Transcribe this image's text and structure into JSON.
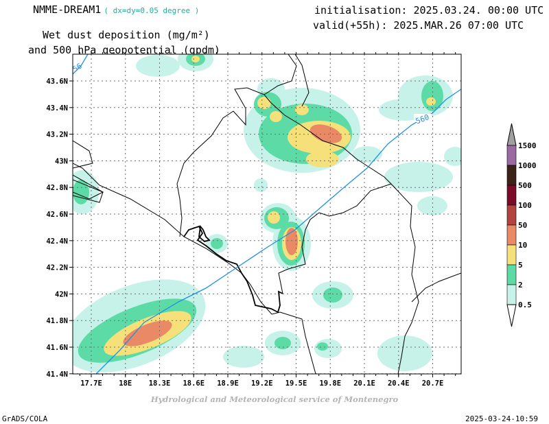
{
  "header": {
    "model": "NMME-DREAM1",
    "resolution": "( dx=dy=0.05 degree )",
    "initialisation": "initialisation: 2025.03.24. 00:00 UTC",
    "valid": "valid(+55h): 2025.MAR.26 07:00 UTC",
    "title_line1": "Wet dust deposition (mg/m²)",
    "title_line2": "and 500 hPa geopotential (gpdm)"
  },
  "map": {
    "lon_ticks": [
      "17.7E",
      "18E",
      "18.3E",
      "18.6E",
      "18.9E",
      "19.2E",
      "19.5E",
      "19.8E",
      "20.1E",
      "20.4E",
      "20.7E"
    ],
    "lat_ticks": [
      "43.6N",
      "43.4N",
      "43.2N",
      "43N",
      "42.8N",
      "42.6N",
      "42.4N",
      "42.2N",
      "42N",
      "41.8N",
      "41.6N",
      "41.4N"
    ],
    "contour_labels": [
      "56",
      "560"
    ],
    "contour_color": "#1e90e6"
  },
  "legend": {
    "levels": [
      "1500",
      "1000",
      "500",
      "100",
      "50",
      "10",
      "5",
      "2",
      "0.5"
    ],
    "colors": [
      "#9b6aa3",
      "#3d2218",
      "#7c0b2a",
      "#b3433f",
      "#e98966",
      "#f5e07a",
      "#5ddba6",
      "#c7f2ea"
    ],
    "low_arrow_color": "#ffffff",
    "high_arrow_color": "#a0a0a0"
  },
  "footer": {
    "credit": "Hydrological and Meteorological service of Montenegro",
    "software": "GrADS/COLA",
    "timestamp": "2025-03-24-10:59"
  }
}
